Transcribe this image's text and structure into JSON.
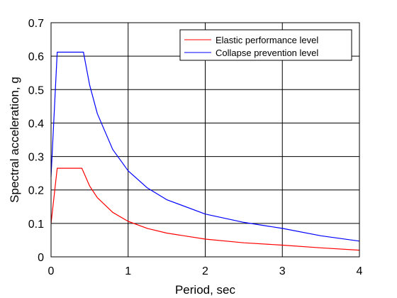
{
  "chart_data": {
    "type": "line",
    "title": "",
    "xlabel": "Period, sec",
    "ylabel": "Spectral acceleration, g",
    "xlim": [
      0,
      4
    ],
    "ylim": [
      0,
      0.7
    ],
    "xticks": [
      0,
      1,
      2,
      3,
      4
    ],
    "yticks": [
      0,
      0.1,
      0.2,
      0.3,
      0.4,
      0.5,
      0.6,
      0.7
    ],
    "grid": true,
    "legend": "top-right",
    "series": [
      {
        "name": "Elastic performance level",
        "color": "#ff0000",
        "x": [
          0,
          0.08,
          0.4,
          0.5,
          0.6,
          0.8,
          1.0,
          1.25,
          1.5,
          2.0,
          2.5,
          3.0,
          3.5,
          4.0
        ],
        "y": [
          0.1,
          0.265,
          0.265,
          0.212,
          0.177,
          0.133,
          0.106,
          0.085,
          0.071,
          0.053,
          0.042,
          0.035,
          0.027,
          0.02
        ]
      },
      {
        "name": "Collapse prevention level",
        "color": "#0000ff",
        "x": [
          0,
          0.08,
          0.42,
          0.5,
          0.6,
          0.8,
          1.0,
          1.25,
          1.5,
          2.0,
          2.5,
          3.0,
          3.5,
          4.0
        ],
        "y": [
          0.24,
          0.612,
          0.612,
          0.514,
          0.428,
          0.321,
          0.257,
          0.206,
          0.171,
          0.128,
          0.103,
          0.085,
          0.063,
          0.047
        ]
      }
    ]
  }
}
